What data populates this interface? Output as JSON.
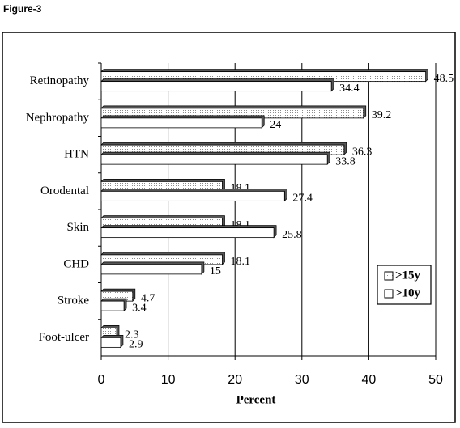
{
  "figure_label": "Figure-3",
  "chart_data": {
    "type": "hbar",
    "x_label": "Percent",
    "categories": [
      "Retinopathy",
      "Nephropathy",
      "HTN",
      "Orodental",
      "Skin",
      "CHD",
      "Stroke",
      "Foot-ulcer"
    ],
    "series": [
      {
        "name": ">15y",
        "color": "#8c8c8c",
        "pattern": "dots",
        "values": [
          48.5,
          39.2,
          36.3,
          18.1,
          18.1,
          18.1,
          4.7,
          2.3
        ]
      },
      {
        "name": ">10y",
        "color": "#ffffff",
        "values": [
          34.4,
          24,
          33.8,
          27.4,
          25.8,
          15,
          3.4,
          2.9
        ]
      }
    ],
    "xlim": [
      0,
      50
    ],
    "xticks": [
      0,
      10,
      20,
      30,
      40,
      50
    ],
    "grid": true
  }
}
